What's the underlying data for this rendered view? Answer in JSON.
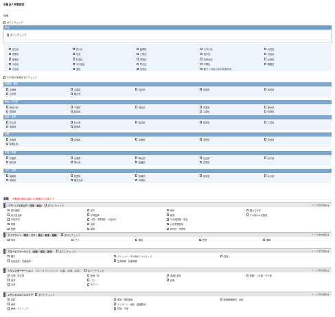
{
  "page_title": "対象法人件数検索",
  "region": {
    "label": "地域",
    "check_all": "全てにチェック",
    "tokyo": {
      "header": "東京",
      "check_all": "全てにチェック",
      "wards": [
        "足立区",
        "荒川区",
        "板橋区",
        "江戸川区",
        "大田区",
        "葛飾区",
        "北区",
        "江東区",
        "品川区",
        "渋谷区",
        "新宿区",
        "杉並区",
        "墨田区",
        "世田谷区",
        "台東区",
        "中央区",
        "千代田区",
        "豊島区",
        "中野区",
        "練馬区",
        "文京区",
        "港区",
        "目黒区",
        "都下（23区以外の市区町村）",
        ""
      ]
    },
    "other_check_all": "その他の地域全てにチェック",
    "regions": [
      {
        "header": "北海道・東北",
        "items": [
          "北海道",
          "青森県",
          "岩手県",
          "宮城県",
          "秋田県",
          "山形県",
          "福島県",
          "",
          "",
          ""
        ]
      },
      {
        "header": "関東・甲信越",
        "items": [
          "神奈川県",
          "千葉県",
          "埼玉県",
          "茨城県",
          "栃木県",
          "群馬県",
          "新潟県",
          "",
          "山梨県",
          "長野県"
        ]
      },
      {
        "header": "北陸・東海",
        "items": [
          "富山県",
          "石川県",
          "福井県",
          "愛知県",
          "三重県",
          "岐阜県",
          "静岡県",
          "",
          "",
          ""
        ]
      },
      {
        "header": "近畿",
        "items": [
          "大阪府",
          "兵庫県",
          "京都府",
          "滋賀県",
          "奈良県",
          "和歌山県",
          "",
          "",
          "",
          ""
        ]
      },
      {
        "header": "中国・四国",
        "items": [
          "鳥取県",
          "島根県",
          "岡山県",
          "広島県",
          "山口県",
          "徳島県",
          "香川県",
          "愛媛県",
          "高知県",
          ""
        ]
      },
      {
        "header": "九州・沖縄",
        "items": [
          "福岡県",
          "佐賀県",
          "長崎県",
          "熊本県",
          "大分県",
          "宮崎県",
          "鹿児島県",
          "沖縄県",
          "",
          ""
        ]
      }
    ]
  },
  "industry": {
    "label": "業種",
    "note": "※業種の選択は最大20業種まで可能です",
    "toggle_label": "ページ全体を編集 ▲",
    "groups": [
      {
        "name": "パブリック(官公庁・団体・福祉)",
        "sub": "",
        "check_all": "全てにチェック",
        "items": [
          "国の機関",
          "県庁",
          "役所",
          "国公立大学",
          "地方自治体",
          "外郭団体",
          "医院",
          "その他の公共施設",
          "市区町村",
          "公団・事業団体・公益法人",
          "その他団体・協会",
          "",
          "警察",
          "消防",
          "公的事業団体",
          "",
          "警察",
          "病院",
          "研究所・研修所",
          ""
        ]
      },
      {
        "name": "ライフライン（電気・ガス・通信・鉄道・運輸）",
        "sub": "",
        "check_all": "全てにチェック",
        "items": [
          "電気",
          "ガス",
          "通信",
          "鉄道",
          "運輸"
        ]
      },
      {
        "name": "マネー＆ファイナンス（金融・保険・証券）",
        "sub": "",
        "check_all": "全てにチェック",
        "items": [
          "銀行",
          "クレジット・その他のファイナンス",
          "証券",
          "信用金庫・労働金庫",
          "生命保険・損害保険",
          ""
        ]
      },
      {
        "name": "トランスポーテーション",
        "sub": "マネー＆ファイナンス（金融・保険・証券）",
        "check_all": "全てにチェック",
        "items": [
          "交通・航空業",
          "鉄道・駅",
          "道路料金所",
          "運輸・ごみ回・その他",
          "港湾",
          "バス",
          "倉庫",
          "",
          "空港",
          "タクシー",
          "",
          "",
          "",
          ""
        ]
      },
      {
        "name": "メディカル＆ヘルスケア",
        "sub": "",
        "check_all": "全てにチェック",
        "items": [
          "歯科",
          "薬局・調剤薬局",
          "医療機器販売・製造",
          "病院",
          "マッサージ・鍼灸・各種整体",
          "",
          "医療・クリニック",
          "看護・介護",
          ""
        ]
      }
    ]
  },
  "colors": {
    "accent": "#6f9cc4",
    "panel": "#eef4fb",
    "note": "#e02020",
    "ind_mark": "#3e5f82"
  }
}
